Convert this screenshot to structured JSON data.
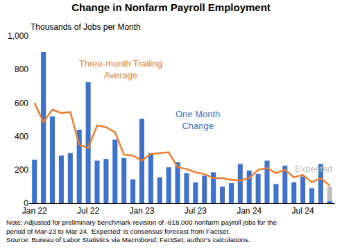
{
  "chart_data": {
    "type": "bar",
    "title": "Change in Nonfarm Payroll Employment",
    "subtitle": "Thousands of Jobs per Month",
    "categories": [
      "Jan 22",
      null,
      null,
      null,
      null,
      null,
      "Jul 22",
      null,
      null,
      null,
      null,
      null,
      "Jan 23",
      null,
      null,
      null,
      null,
      null,
      "Jul 23",
      null,
      null,
      null,
      null,
      null,
      "Jan 24",
      null,
      null,
      null,
      null,
      null,
      "Jul 24",
      null,
      null,
      null
    ],
    "series": [
      {
        "name": "Expected",
        "type": "bar",
        "color": "#BFBFBF",
        "values": [
          null,
          null,
          null,
          null,
          null,
          null,
          null,
          null,
          null,
          null,
          null,
          null,
          null,
          null,
          null,
          null,
          null,
          null,
          null,
          null,
          null,
          null,
          null,
          null,
          null,
          null,
          null,
          null,
          null,
          null,
          null,
          null,
          null,
          100
        ]
      },
      {
        "name": "One Month Change",
        "type": "bar",
        "color": "#3F72C9",
        "values": [
          260,
          905,
          520,
          285,
          300,
          440,
          725,
          255,
          265,
          380,
          270,
          143,
          505,
          300,
          155,
          215,
          245,
          180,
          125,
          165,
          185,
          100,
          120,
          235,
          195,
          175,
          255,
          115,
          225,
          125,
          160,
          90,
          235,
          12
        ]
      },
      {
        "name": "Three-month Trailing Average",
        "type": "line",
        "color": "#ED7D31",
        "values": [
          600,
          485,
          560,
          540,
          545,
          350,
          330,
          465,
          455,
          425,
          290,
          285,
          255,
          295,
          300,
          305,
          215,
          205,
          185,
          175,
          150,
          150,
          140,
          135,
          150,
          200,
          210,
          180,
          200,
          155,
          170,
          125,
          150,
          105
        ]
      }
    ],
    "ylim": [
      0,
      1000
    ],
    "yticks": [
      0,
      200,
      400,
      600,
      800,
      {
        "value": 1000,
        "label": "1,000"
      }
    ],
    "grid": false,
    "notes": [
      "Note: Adjusted for preliminary benchmark revision of -818,000 nonfarm payroll jobs for the",
      "period of Mar-23 to Mar 24. 'Expected' is consensus forecast from Factset.",
      "Source: Bureau of Labor Statistics via Macrobond; FactSet; author's calculations."
    ]
  }
}
